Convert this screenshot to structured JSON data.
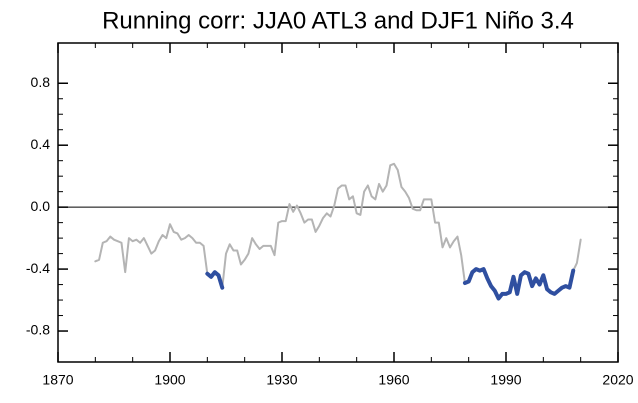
{
  "chart_data": {
    "type": "line",
    "title": "Running corr: JJA0 ATL3 and DJF1 Niño 3.4",
    "x": [
      1880,
      1881,
      1882,
      1883,
      1884,
      1885,
      1886,
      1887,
      1888,
      1889,
      1890,
      1891,
      1892,
      1893,
      1894,
      1895,
      1896,
      1897,
      1898,
      1899,
      1900,
      1901,
      1902,
      1903,
      1904,
      1905,
      1906,
      1907,
      1908,
      1909,
      1910,
      1911,
      1912,
      1913,
      1914,
      1915,
      1916,
      1917,
      1918,
      1919,
      1920,
      1921,
      1922,
      1923,
      1924,
      1925,
      1926,
      1927,
      1928,
      1929,
      1930,
      1931,
      1932,
      1933,
      1934,
      1935,
      1936,
      1937,
      1938,
      1939,
      1940,
      1941,
      1942,
      1943,
      1944,
      1945,
      1946,
      1947,
      1948,
      1949,
      1950,
      1951,
      1952,
      1953,
      1954,
      1955,
      1956,
      1957,
      1958,
      1959,
      1960,
      1961,
      1962,
      1963,
      1964,
      1965,
      1966,
      1967,
      1968,
      1969,
      1970,
      1971,
      1972,
      1973,
      1974,
      1975,
      1976,
      1977,
      1978,
      1979,
      1980,
      1981,
      1982,
      1983,
      1984,
      1985,
      1986,
      1987,
      1988,
      1989,
      1990,
      1991,
      1992,
      1993,
      1994,
      1995,
      1996,
      1997,
      1998,
      1999,
      2000,
      2001,
      2002,
      2003,
      2004,
      2005,
      2006,
      2007,
      2008,
      2009,
      2010
    ],
    "series": [
      {
        "color": "#b4b4b4",
        "width": 2,
        "values": [
          -0.35,
          -0.34,
          -0.23,
          -0.22,
          -0.19,
          -0.21,
          -0.22,
          -0.23,
          -0.42,
          -0.2,
          -0.22,
          -0.21,
          -0.23,
          -0.2,
          -0.25,
          -0.3,
          -0.28,
          -0.22,
          -0.18,
          -0.2,
          -0.11,
          -0.16,
          -0.17,
          -0.21,
          -0.2,
          -0.18,
          -0.2,
          -0.23,
          -0.23,
          -0.25,
          -0.43,
          -0.45,
          -0.42,
          -0.44,
          -0.52,
          -0.3,
          -0.24,
          -0.28,
          -0.28,
          -0.37,
          -0.34,
          -0.3,
          -0.2,
          -0.24,
          -0.27,
          -0.25,
          -0.25,
          -0.25,
          -0.31,
          -0.1,
          -0.09,
          -0.09,
          0.02,
          -0.03,
          0.01,
          -0.04,
          -0.1,
          -0.08,
          -0.08,
          -0.16,
          -0.12,
          -0.07,
          -0.04,
          -0.06,
          0.01,
          0.12,
          0.14,
          0.14,
          0.05,
          0.07,
          -0.04,
          -0.05,
          0.1,
          0.14,
          0.07,
          0.05,
          0.15,
          0.1,
          0.14,
          0.27,
          0.28,
          0.24,
          0.13,
          0.1,
          0.06,
          -0.01,
          -0.02,
          -0.02,
          0.05,
          0.05,
          0.05,
          -0.1,
          -0.1,
          -0.26,
          -0.2,
          -0.26,
          -0.22,
          -0.19,
          -0.31,
          -0.49,
          -0.48,
          -0.42,
          -0.4,
          -0.41,
          -0.4,
          -0.46,
          -0.51,
          -0.54,
          -0.59,
          -0.56,
          -0.56,
          -0.55,
          -0.45,
          -0.56,
          -0.44,
          -0.42,
          -0.43,
          -0.51,
          -0.46,
          -0.5,
          -0.44,
          -0.53,
          -0.55,
          -0.56,
          -0.54,
          -0.52,
          -0.51,
          -0.52,
          -0.41,
          -0.36,
          -0.21
        ]
      },
      {
        "color": "#2f4fa0",
        "width": 4,
        "values": [
          null,
          null,
          null,
          null,
          null,
          null,
          null,
          null,
          null,
          null,
          null,
          null,
          null,
          null,
          null,
          null,
          null,
          null,
          null,
          null,
          null,
          null,
          null,
          null,
          null,
          null,
          null,
          null,
          null,
          null,
          -0.43,
          -0.45,
          -0.42,
          -0.44,
          -0.52,
          null,
          null,
          null,
          null,
          null,
          null,
          null,
          null,
          null,
          null,
          null,
          null,
          null,
          null,
          null,
          null,
          null,
          null,
          null,
          null,
          null,
          null,
          null,
          null,
          null,
          null,
          null,
          null,
          null,
          null,
          null,
          null,
          null,
          null,
          null,
          null,
          null,
          null,
          null,
          null,
          null,
          null,
          null,
          null,
          null,
          null,
          null,
          null,
          null,
          null,
          null,
          null,
          null,
          null,
          null,
          null,
          null,
          null,
          null,
          null,
          null,
          null,
          null,
          null,
          -0.49,
          -0.48,
          -0.42,
          -0.4,
          -0.41,
          -0.4,
          -0.46,
          -0.51,
          -0.54,
          -0.59,
          -0.56,
          -0.56,
          -0.55,
          -0.45,
          -0.56,
          -0.44,
          -0.42,
          -0.43,
          -0.51,
          -0.46,
          -0.5,
          -0.44,
          -0.53,
          -0.55,
          -0.56,
          -0.54,
          -0.52,
          -0.51,
          -0.52,
          -0.41,
          null,
          null
        ]
      }
    ],
    "hline": 0,
    "xlim": [
      1870,
      2020
    ],
    "xticks": [
      1870,
      1900,
      1930,
      1960,
      1990,
      2020
    ],
    "ylim": [
      -1.0,
      1.06
    ],
    "yticks": [
      -0.8,
      -0.4,
      {
        "value": 0,
        "label": "0.0"
      },
      0.4,
      0.8
    ]
  }
}
